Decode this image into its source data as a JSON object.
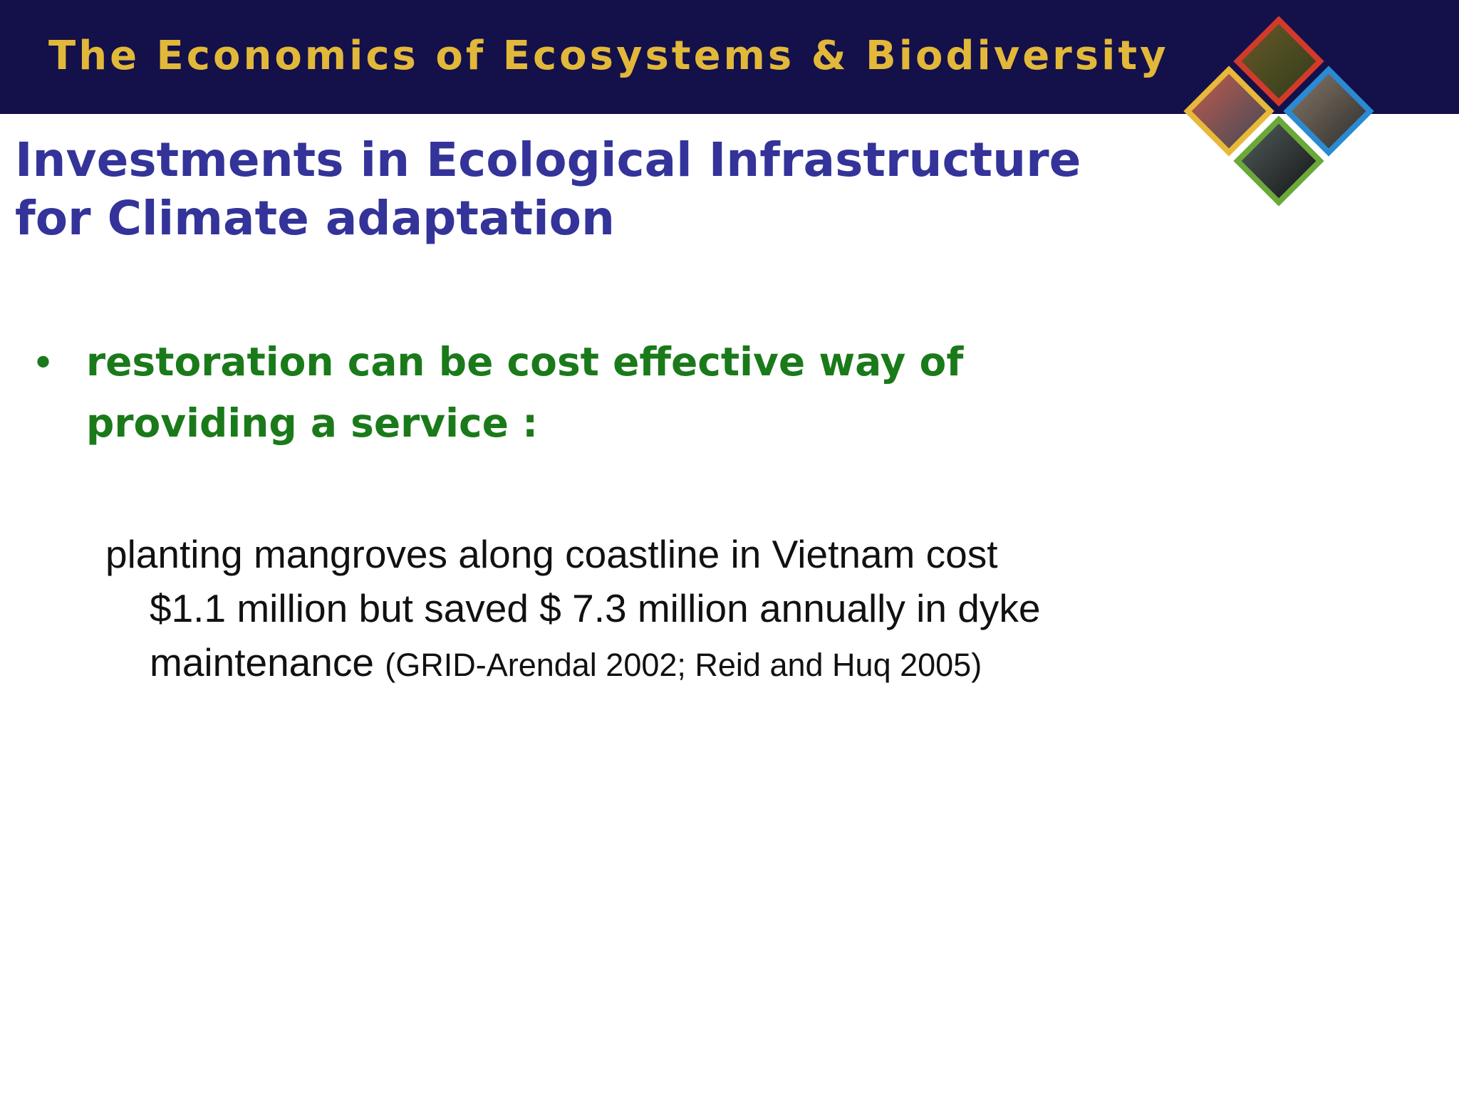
{
  "header": {
    "title": "The Economics of Ecosystems & Biodiversity"
  },
  "slide": {
    "title_lines": [
      "Investments in Ecological Infrastructure",
      "for Climate adaptation"
    ],
    "bullet": {
      "lines": [
        "restoration can be cost effective way of",
        "providing a service :"
      ]
    },
    "body": {
      "text": "planting mangroves along coastline in Vietnam cost $1.1 million but saved $ 7.3 million annually in dyke maintenance",
      "citation": "(GRID-Arendal 2002; Reid and Huq 2005)"
    }
  }
}
